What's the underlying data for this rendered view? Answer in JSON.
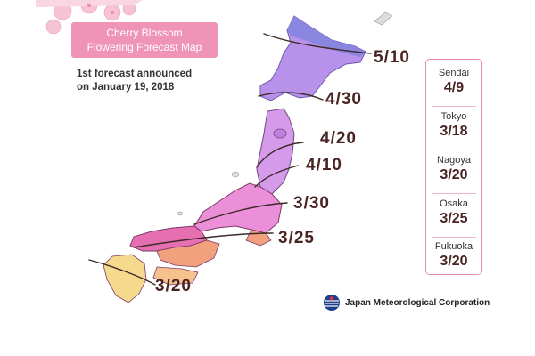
{
  "title": {
    "line1": "Cherry Blossom",
    "line2": "Flowering Forecast Map"
  },
  "announcement": {
    "line1": "1st forecast announced",
    "line2": "on January 19, 2018"
  },
  "isolines": [
    {
      "date": "5/10",
      "color": "#8a86e0"
    },
    {
      "date": "4/30",
      "color": "#b487ea"
    },
    {
      "date": "4/20",
      "color": "#c98ae6"
    },
    {
      "date": "4/10",
      "color": "#e59ae8"
    },
    {
      "date": "3/30",
      "color": "#e56fb0"
    },
    {
      "date": "3/25",
      "color": "#f1a17e"
    },
    {
      "date": "3/20",
      "color": "#f5d98c"
    }
  ],
  "cities": [
    {
      "name": "Sendai",
      "date": "4/9"
    },
    {
      "name": "Tokyo",
      "date": "3/18"
    },
    {
      "name": "Nagoya",
      "date": "3/20"
    },
    {
      "name": "Osaka",
      "date": "3/25"
    },
    {
      "name": "Fukuoka",
      "date": "3/20"
    }
  ],
  "source": {
    "name": "Japan Meteorological Corporation",
    "icon": "jmc-logo-icon"
  },
  "decoration": {
    "icon": "cherry-blossom-icon",
    "color": "#f6c3d3"
  }
}
